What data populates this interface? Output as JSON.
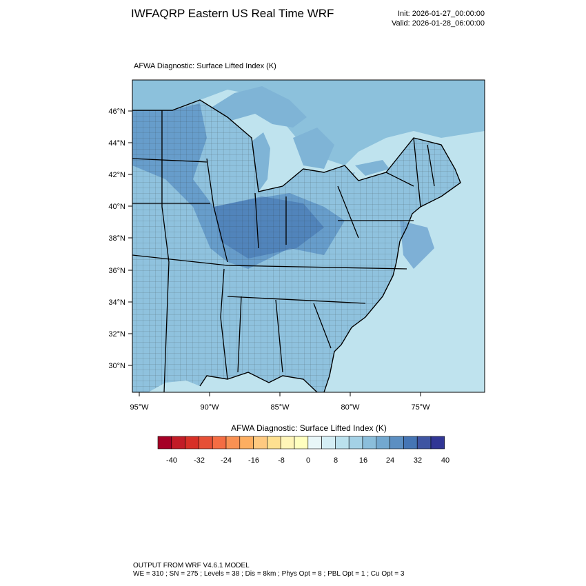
{
  "header": {
    "title": "IWFAQRP Eastern US Real Time WRF",
    "init": "Init: 2026-01-27_00:00:00",
    "valid": "Valid: 2026-01-28_06:00:00"
  },
  "map": {
    "field_label": "AFWA Diagnostic: Surface Lifted Index   (K)",
    "lat_labels": [
      "46°N",
      "44°N",
      "42°N",
      "40°N",
      "38°N",
      "36°N",
      "34°N",
      "32°N",
      "30°N"
    ],
    "lon_labels": [
      "95°W",
      "90°W",
      "85°W",
      "80°W",
      "75°W"
    ]
  },
  "colorbar": {
    "title": "AFWA Diagnostic: Surface Lifted Index  (K)",
    "labels": [
      "-40",
      "-32",
      "-24",
      "-16",
      "-8",
      "0",
      "8",
      "16",
      "24",
      "32",
      "40"
    ],
    "colors": [
      "#a50026",
      "#c21c27",
      "#d73027",
      "#e65036",
      "#f46d43",
      "#f99153",
      "#fdae61",
      "#fec980",
      "#fee090",
      "#fff5b8",
      "#ffffbf",
      "#e8f6f8",
      "#d4eef5",
      "#bbe1ed",
      "#a4d1e6",
      "#8bbedb",
      "#73a8cf",
      "#5c8fc2",
      "#4575b4",
      "#3f55a2",
      "#313695"
    ]
  },
  "footer": {
    "line1": "OUTPUT FROM WRF V4.6.1 MODEL",
    "line2": "WE = 310 ; SN = 275 ; Levels = 38 ; Dis = 8km ; Phys Opt = 8 ; PBL Opt = 1 ; Cu Opt = 3"
  }
}
